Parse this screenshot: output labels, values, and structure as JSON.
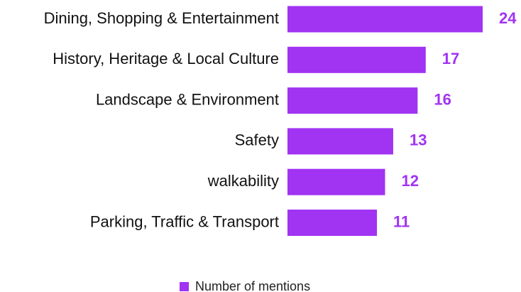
{
  "chart_data": {
    "type": "barh",
    "categories": [
      "Dining, Shopping & Entertainment",
      "History, Heritage & Local Culture",
      "Landscape & Environment",
      "Safety",
      "walkability",
      "Parking, Traffic & Transport"
    ],
    "series": [
      {
        "name": "Number of mentions",
        "color": "#a133f2",
        "values": [
          24,
          17,
          16,
          13,
          12,
          11
        ]
      }
    ],
    "legend": "bottom"
  }
}
